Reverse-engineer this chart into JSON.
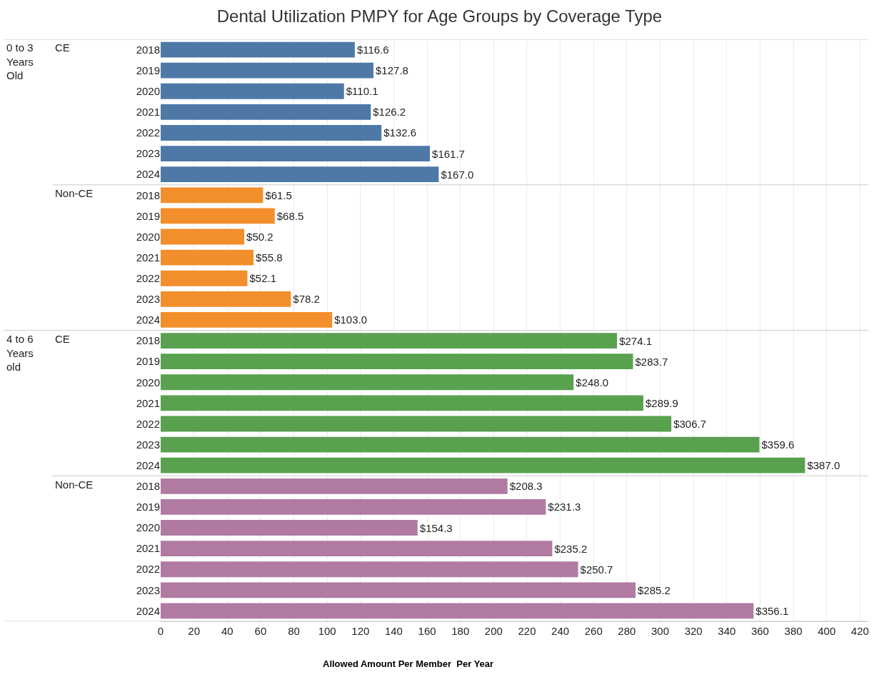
{
  "chart_data": {
    "type": "bar",
    "orientation": "horizontal",
    "title": "Dental Utilization PMPY for Age Groups by Coverage Type",
    "xlabel": "Allowed Amount Per Member  Per Year",
    "categories": [
      "2018",
      "2019",
      "2020",
      "2021",
      "2022",
      "2023",
      "2024",
      "2018",
      "2019",
      "2020",
      "2021",
      "2022",
      "2023",
      "2024",
      "2018",
      "2019",
      "2020",
      "2021",
      "2022",
      "2023",
      "2024",
      "2018",
      "2019",
      "2020",
      "2021",
      "2022",
      "2023",
      "2024"
    ],
    "values": [
      116.6,
      127.8,
      110.1,
      126.2,
      132.6,
      161.7,
      167.0,
      61.5,
      68.5,
      50.2,
      55.8,
      52.1,
      78.2,
      103.0,
      274.1,
      283.7,
      248.0,
      289.9,
      306.7,
      359.6,
      387.0,
      208.3,
      231.3,
      154.3,
      235.2,
      250.7,
      285.2,
      356.1
    ],
    "value_labels": [
      "$116.6",
      "$127.8",
      "$110.1",
      "$126.2",
      "$132.6",
      "$161.7",
      "$167.0",
      "$61.5",
      "$68.5",
      "$50.2",
      "$55.8",
      "$52.1",
      "$78.2",
      "$103.0",
      "$274.1",
      "$283.7",
      "$248.0",
      "$289.9",
      "$306.7",
      "$359.6",
      "$387.0",
      "$208.3",
      "$231.3",
      "$154.3",
      "$235.2",
      "$250.7",
      "$285.2",
      "$356.1"
    ],
    "colors": [
      "#4e79a7",
      "#4e79a7",
      "#4e79a7",
      "#4e79a7",
      "#4e79a7",
      "#4e79a7",
      "#4e79a7",
      "#f28e2b",
      "#f28e2b",
      "#f28e2b",
      "#f28e2b",
      "#f28e2b",
      "#f28e2b",
      "#f28e2b",
      "#59a14f",
      "#59a14f",
      "#59a14f",
      "#59a14f",
      "#59a14f",
      "#59a14f",
      "#59a14f",
      "#b07aa1",
      "#b07aa1",
      "#b07aa1",
      "#b07aa1",
      "#b07aa1",
      "#b07aa1",
      "#b07aa1"
    ],
    "annotations": [
      "0 to 3 Years Old",
      "CE",
      "Non-CE",
      "4 to 6 Years old",
      "CE",
      "Non-CE"
    ],
    "xlim": [
      0,
      425
    ],
    "xticks": [
      0,
      20,
      40,
      60,
      80,
      100,
      120,
      140,
      160,
      180,
      200,
      220,
      240,
      260,
      280,
      300,
      320,
      340,
      360,
      380,
      400,
      420
    ],
    "grid": "x"
  }
}
